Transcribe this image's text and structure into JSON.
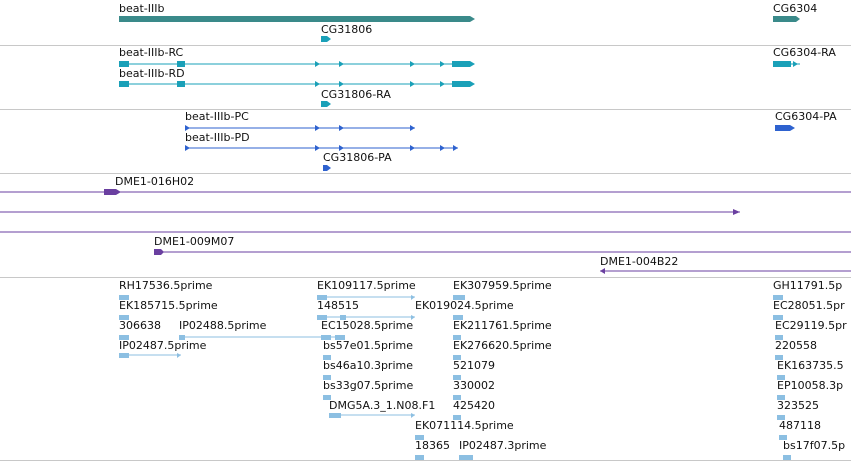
{
  "colors": {
    "gene": "#3a8a8a",
    "transcript": "#1aa0b8",
    "protein": "#2e62cf",
    "clone": "#6a3fa0",
    "est": "#8cbfe2",
    "separator": "#c8c8c8"
  },
  "tracks": {
    "genes": {
      "labels": [
        "beat-IIIb",
        "CG31806",
        "CG6304"
      ]
    },
    "transcripts": {
      "labels": [
        "beat-IIIb-RC",
        "beat-IIIb-RD",
        "CG31806-RA",
        "CG6304-RA"
      ]
    },
    "proteins": {
      "labels": [
        "beat-IIIb-PC",
        "beat-IIIb-PD",
        "CG31806-PA",
        "CG6304-PA"
      ]
    },
    "clones": {
      "labels": [
        "DME1-016H02",
        "DME1-009M07",
        "DME1-004B22"
      ]
    },
    "ests": {
      "labels": [
        "RH17536.5prime",
        "EK185715.5prime",
        "306638",
        "IP02488.5prime",
        "IP02487.5prime",
        "EK109117.5prime",
        "148515",
        "EK019024.5prime",
        "EC15028.5prime",
        "bs57e01.5prime",
        "bs46a10.3prime",
        "bs33g07.5prime",
        "DMG5A.3_1.N08.F1",
        "EK071114.5prime",
        "18365",
        "EK307959.5prime",
        "EK211761.5prime",
        "EK276620.5prime",
        "521079",
        "330002",
        "425420",
        "IP02487.3prime",
        "GH11791.5p",
        "EC28051.5pr",
        "EC29119.5pr",
        "220558",
        "EK163735.5",
        "EP10058.3p",
        "323525",
        "487118",
        "bs17f07.5p"
      ]
    }
  }
}
